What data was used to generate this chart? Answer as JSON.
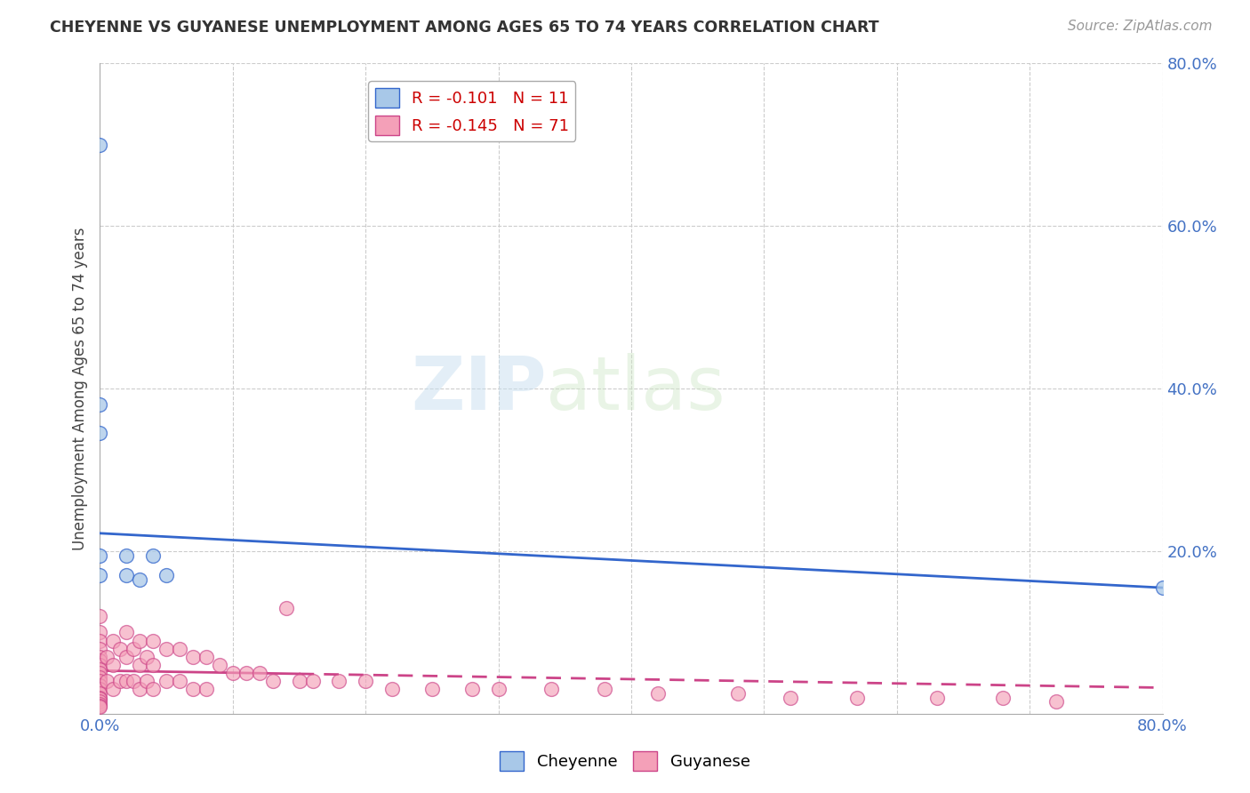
{
  "title": "CHEYENNE VS GUYANESE UNEMPLOYMENT AMONG AGES 65 TO 74 YEARS CORRELATION CHART",
  "source_text": "Source: ZipAtlas.com",
  "ylabel": "Unemployment Among Ages 65 to 74 years",
  "xlabel": "",
  "xlim": [
    0.0,
    0.8
  ],
  "ylim": [
    0.0,
    0.8
  ],
  "cheyenne_color": "#a8c8e8",
  "guyanese_color": "#f4a0b8",
  "cheyenne_line_color": "#3366cc",
  "guyanese_line_color": "#cc4488",
  "cheyenne_edge_color": "#3366cc",
  "guyanese_edge_color": "#cc4488",
  "legend_r_cheyenne": "R = -0.101",
  "legend_n_cheyenne": "N = 11",
  "legend_r_guyanese": "R = -0.145",
  "legend_n_guyanese": "N = 71",
  "watermark_zip": "ZIP",
  "watermark_atlas": "atlas",
  "background_color": "#ffffff",
  "grid_color": "#cccccc",
  "tick_label_color": "#4472c4",
  "cheyenne_x": [
    0.0,
    0.0,
    0.0,
    0.0,
    0.0,
    0.02,
    0.02,
    0.03,
    0.04,
    0.05,
    0.8
  ],
  "cheyenne_y": [
    0.7,
    0.38,
    0.345,
    0.195,
    0.17,
    0.195,
    0.17,
    0.165,
    0.195,
    0.17,
    0.155
  ],
  "guyanese_x": [
    0.0,
    0.0,
    0.0,
    0.0,
    0.0,
    0.0,
    0.0,
    0.0,
    0.0,
    0.0,
    0.0,
    0.0,
    0.0,
    0.0,
    0.0,
    0.0,
    0.0,
    0.0,
    0.0,
    0.0,
    0.005,
    0.005,
    0.01,
    0.01,
    0.01,
    0.015,
    0.015,
    0.02,
    0.02,
    0.02,
    0.025,
    0.025,
    0.03,
    0.03,
    0.03,
    0.035,
    0.035,
    0.04,
    0.04,
    0.04,
    0.05,
    0.05,
    0.06,
    0.06,
    0.07,
    0.07,
    0.08,
    0.08,
    0.09,
    0.1,
    0.11,
    0.12,
    0.13,
    0.14,
    0.15,
    0.16,
    0.18,
    0.2,
    0.22,
    0.25,
    0.28,
    0.3,
    0.34,
    0.38,
    0.42,
    0.48,
    0.52,
    0.57,
    0.63,
    0.68,
    0.72
  ],
  "guyanese_y": [
    0.12,
    0.1,
    0.09,
    0.08,
    0.07,
    0.065,
    0.06,
    0.055,
    0.05,
    0.045,
    0.04,
    0.035,
    0.03,
    0.025,
    0.02,
    0.018,
    0.015,
    0.012,
    0.01,
    0.008,
    0.07,
    0.04,
    0.09,
    0.06,
    0.03,
    0.08,
    0.04,
    0.1,
    0.07,
    0.04,
    0.08,
    0.04,
    0.09,
    0.06,
    0.03,
    0.07,
    0.04,
    0.09,
    0.06,
    0.03,
    0.08,
    0.04,
    0.08,
    0.04,
    0.07,
    0.03,
    0.07,
    0.03,
    0.06,
    0.05,
    0.05,
    0.05,
    0.04,
    0.13,
    0.04,
    0.04,
    0.04,
    0.04,
    0.03,
    0.03,
    0.03,
    0.03,
    0.03,
    0.03,
    0.025,
    0.025,
    0.02,
    0.02,
    0.02,
    0.02,
    0.015
  ]
}
